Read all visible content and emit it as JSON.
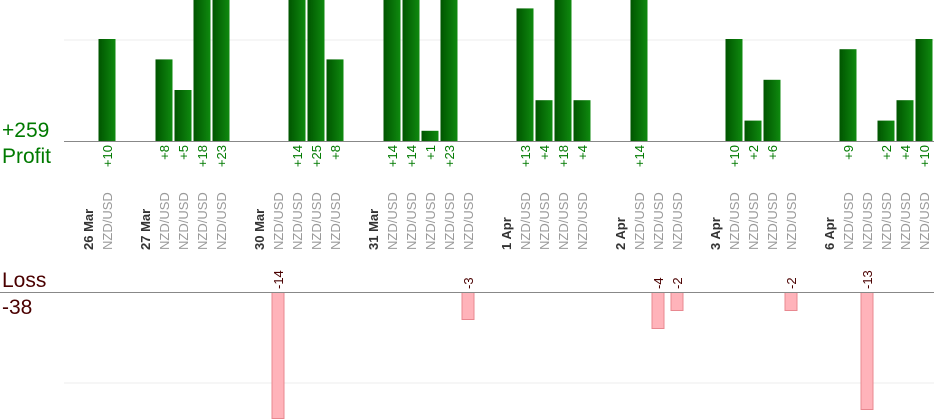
{
  "summary": {
    "profit_total": "+259",
    "profit_label": "Profit",
    "loss_label": "Loss",
    "loss_total": "-38"
  },
  "colors": {
    "profit_bar_dark": "#005500",
    "profit_bar_light": "#0f8a0f",
    "profit_text": "#007a00",
    "loss_bar": "#ffb3ba",
    "loss_bar_border": "#e88890",
    "loss_text": "#4a0000",
    "date_text": "#333333",
    "pair_text": "#9a9a9a"
  },
  "chart_data": {
    "type": "bar",
    "title": "",
    "groups": [
      {
        "date": "26 Mar",
        "trades": [
          {
            "pair": "NZD/USD",
            "value": 10
          }
        ]
      },
      {
        "date": "27 Mar",
        "trades": [
          {
            "pair": "NZD/USD",
            "value": 8
          },
          {
            "pair": "NZD/USD",
            "value": 5
          },
          {
            "pair": "NZD/USD",
            "value": 18
          },
          {
            "pair": "NZD/USD",
            "value": 23
          }
        ]
      },
      {
        "date": "30 Mar",
        "trades": [
          {
            "pair": "NZD/USD",
            "value": -14
          },
          {
            "pair": "NZD/USD",
            "value": 14
          },
          {
            "pair": "NZD/USD",
            "value": 25
          },
          {
            "pair": "NZD/USD",
            "value": 8
          }
        ]
      },
      {
        "date": "31 Mar",
        "trades": [
          {
            "pair": "NZD/USD",
            "value": 14
          },
          {
            "pair": "NZD/USD",
            "value": 14
          },
          {
            "pair": "NZD/USD",
            "value": 1
          },
          {
            "pair": "NZD/USD",
            "value": 23
          },
          {
            "pair": "NZD/USD",
            "value": -3
          }
        ]
      },
      {
        "date": "1 Apr",
        "trades": [
          {
            "pair": "NZD/USD",
            "value": 13
          },
          {
            "pair": "NZD/USD",
            "value": 4
          },
          {
            "pair": "NZD/USD",
            "value": 18
          },
          {
            "pair": "NZD/USD",
            "value": 4
          }
        ]
      },
      {
        "date": "2 Apr",
        "trades": [
          {
            "pair": "NZD/USD",
            "value": 14
          },
          {
            "pair": "NZD/USD",
            "value": -4
          },
          {
            "pair": "NZD/USD",
            "value": -2
          }
        ]
      },
      {
        "date": "3 Apr",
        "trades": [
          {
            "pair": "NZD/USD",
            "value": 10
          },
          {
            "pair": "NZD/USD",
            "value": 2
          },
          {
            "pair": "NZD/USD",
            "value": 6
          },
          {
            "pair": "NZD/USD",
            "value": -2
          }
        ]
      },
      {
        "date": "6 Apr",
        "trades": [
          {
            "pair": "NZD/USD",
            "value": 9
          },
          {
            "pair": "NZD/USD",
            "value": -13
          },
          {
            "pair": "NZD/USD",
            "value": 2
          },
          {
            "pair": "NZD/USD",
            "value": 4
          },
          {
            "pair": "NZD/USD",
            "value": 10
          }
        ]
      }
    ],
    "grid": true
  }
}
